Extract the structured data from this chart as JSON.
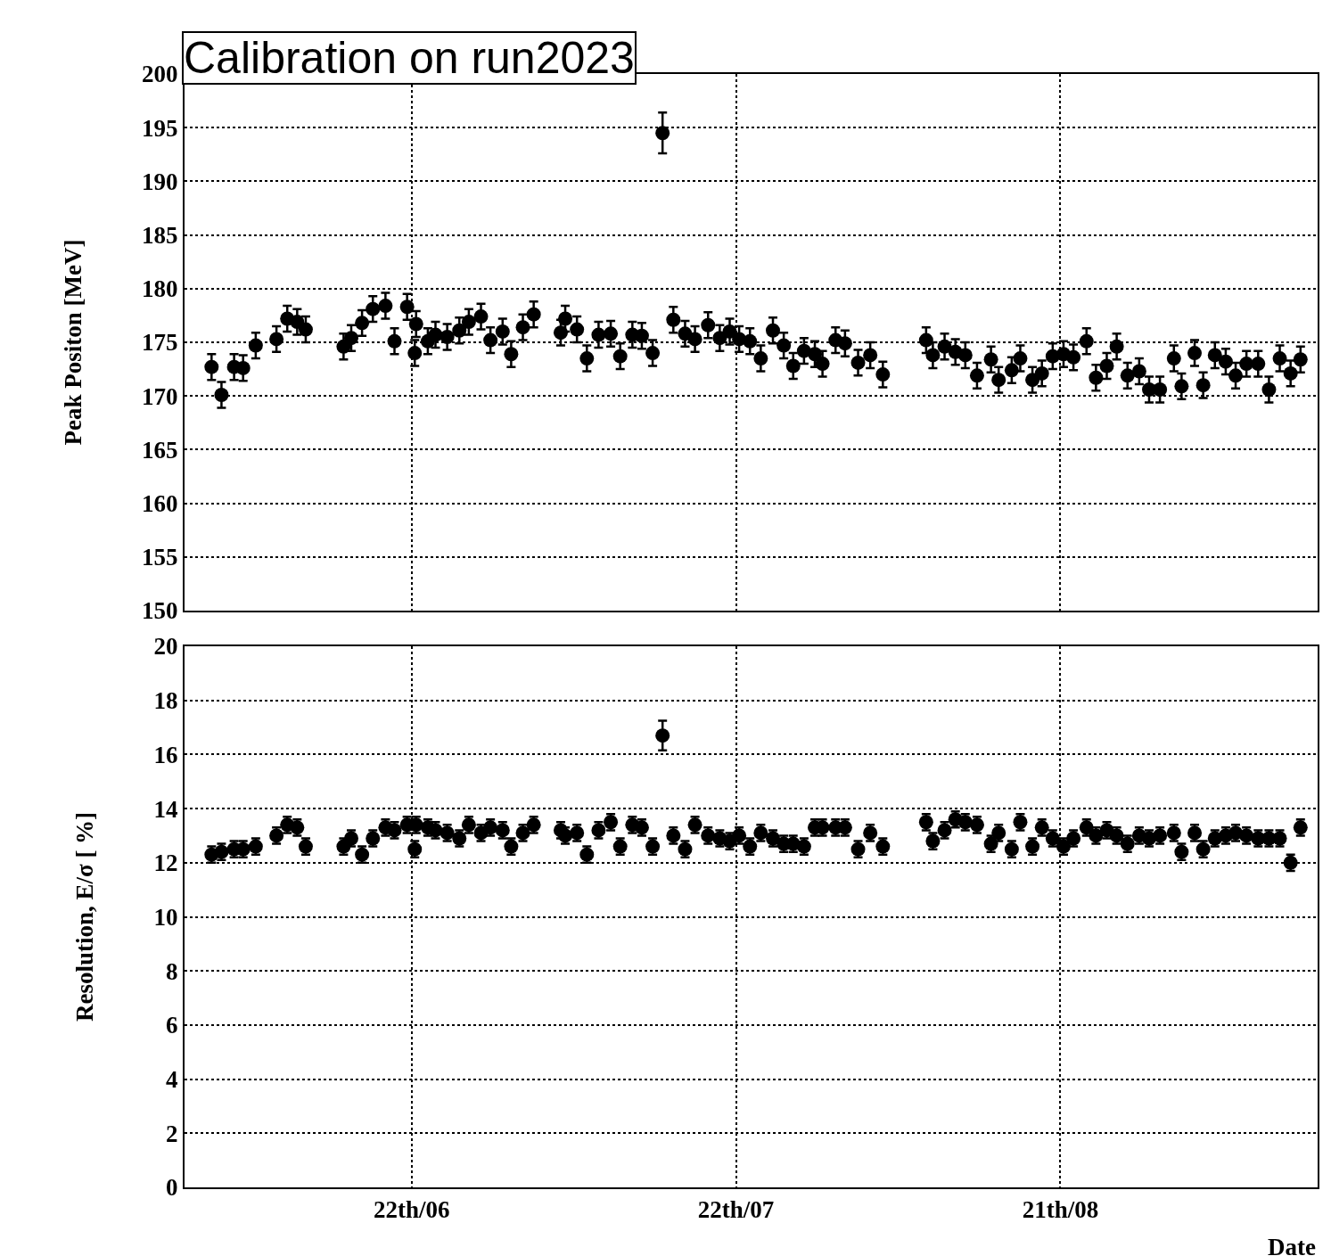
{
  "chart_data": [
    {
      "type": "scatter",
      "title": "Calibration on run2023",
      "ylabel": "Peak Positon [MeV]",
      "tick_labels": "y",
      "grid": true,
      "marker": "circle",
      "x": [
        "--06-03T12:00",
        "--06-04T10:00",
        "--06-05T14:00",
        "--06-06T10:00",
        "--06-07T14:00",
        "--06-09T12:00",
        "--06-10T12:00",
        "--06-11T10:00",
        "--06-12T05:00",
        "--06-15T17:00",
        "--06-16T10:00",
        "--06-17T10:00",
        "--06-18T10:00",
        "--06-19T14:00",
        "--06-20T10:00",
        "--06-21T14:00",
        "--06-22T10:00",
        "--06-22T07:00",
        "--06-23T12:00",
        "--06-24T05:00",
        "--06-25T07:00",
        "--06-26T10:00",
        "--06-27T07:00",
        "--06-28T10:00",
        "--06-29T07:00",
        "--06-30T10:00",
        "--07-01T05:00",
        "--07-02T07:00",
        "--07-03T07:00",
        "--07-05T19:00",
        "--07-06T05:00",
        "--07-07T07:00",
        "--07-08T05:00",
        "--07-09T07:00",
        "--07-10T10:00",
        "--07-11T07:00",
        "--07-12T10:00",
        "--07-13T07:00",
        "--07-14T07:00",
        "--07-15T05:00",
        "--07-16T05:00",
        "--07-17T07:00",
        "--07-18T05:00",
        "--07-19T10:00",
        "--07-20T12:00",
        "--07-21T10:00",
        "--07-22T07:00",
        "--07-23T07:00",
        "--07-24T07:00",
        "--07-25T10:00",
        "--07-26T10:00",
        "--07-27T07:00",
        "--07-28T07:00",
        "--07-29T07:00",
        "--07-30T00:00",
        "--07-31T05:00",
        "--08-01T02:00",
        "--08-02T07:00",
        "--08-03T10:00",
        "--08-04T14:00",
        "--08-08T14:00",
        "--08-09T05:00",
        "--08-10T07:00",
        "--08-11T07:00",
        "--08-12T05:00",
        "--08-13T07:00",
        "--08-14T14:00",
        "--08-15T07:00",
        "--08-16T12:00",
        "--08-17T07:00",
        "--08-18T10:00",
        "--08-19T07:00",
        "--08-20T07:00",
        "--08-21T07:00",
        "--08-22T05:00",
        "--08-23T10:00",
        "--08-24T07:00",
        "--08-25T07:00",
        "--08-26T05:00",
        "--08-27T05:00",
        "--08-28T07:00",
        "--08-29T05:00",
        "--08-30T05:00",
        "--08-31T12:00",
        "--09-01T05:00",
        "--09-02T10:00",
        "--09-03T05:00",
        "--09-04T07:00",
        "--09-05T07:00",
        "--09-06T05:00",
        "--09-07T05:00",
        "--09-08T07:00",
        "--09-09T07:00",
        "--09-10T07:00",
        "--09-11T07:00",
        "--09-12T05:00"
      ],
      "xlim": [
        "--06-01T00:00",
        "--09-13T19:00"
      ],
      "xticks": [
        {
          "value": "--06-22",
          "label": "22th/06"
        },
        {
          "value": "--07-22",
          "label": "22th/07"
        },
        {
          "value": "--08-21",
          "label": "21th/08"
        }
      ],
      "ylim": [
        150,
        200
      ],
      "yticks": [
        150,
        155,
        160,
        165,
        170,
        175,
        180,
        185,
        190,
        195,
        200
      ],
      "series": [
        {
          "color": "#000000",
          "values": [
            172.7,
            170.1,
            172.7,
            172.6,
            174.7,
            175.3,
            177.2,
            176.9,
            176.2,
            174.6,
            175.4,
            176.8,
            178.1,
            178.4,
            175.1,
            178.3,
            176.7,
            174.0,
            175.1,
            175.7,
            175.5,
            176.1,
            176.9,
            177.4,
            175.2,
            176.0,
            173.9,
            176.4,
            177.6,
            175.9,
            177.2,
            176.2,
            173.5,
            175.7,
            175.8,
            173.7,
            175.7,
            175.6,
            174.0,
            194.5,
            177.1,
            175.8,
            175.3,
            176.6,
            175.4,
            176.0,
            175.3,
            175.1,
            173.5,
            176.1,
            174.7,
            172.8,
            174.2,
            173.9,
            173.0,
            175.2,
            174.9,
            173.1,
            173.8,
            172.0,
            175.2,
            173.8,
            174.6,
            174.1,
            173.8,
            171.9,
            173.4,
            171.5,
            172.4,
            173.5,
            171.5,
            172.1,
            173.7,
            173.9,
            173.6,
            175.1,
            171.7,
            172.8,
            174.6,
            171.9,
            172.3,
            170.6,
            170.6,
            173.5,
            170.9,
            174.0,
            171.0,
            173.8,
            173.2,
            171.9,
            173.0,
            173.0,
            170.6,
            173.5,
            172.1,
            173.4
          ],
          "errors": [
            1.2,
            1.2,
            1.2,
            1.2,
            1.2,
            1.2,
            1.2,
            1.2,
            1.2,
            1.2,
            1.2,
            1.2,
            1.2,
            1.2,
            1.2,
            1.2,
            1.2,
            1.2,
            1.2,
            1.2,
            1.2,
            1.2,
            1.2,
            1.2,
            1.2,
            1.2,
            1.2,
            1.2,
            1.2,
            1.2,
            1.2,
            1.2,
            1.2,
            1.2,
            1.2,
            1.2,
            1.2,
            1.2,
            1.2,
            1.9,
            1.2,
            1.2,
            1.2,
            1.2,
            1.2,
            1.2,
            1.2,
            1.2,
            1.2,
            1.2,
            1.2,
            1.2,
            1.2,
            1.2,
            1.2,
            1.2,
            1.2,
            1.2,
            1.2,
            1.2,
            1.2,
            1.2,
            1.2,
            1.2,
            1.2,
            1.2,
            1.2,
            1.2,
            1.2,
            1.2,
            1.2,
            1.2,
            1.2,
            1.2,
            1.2,
            1.2,
            1.2,
            1.2,
            1.2,
            1.2,
            1.2,
            1.2,
            1.2,
            1.2,
            1.2,
            1.2,
            1.2,
            1.2,
            1.2,
            1.2,
            1.2,
            1.2,
            1.2,
            1.2,
            1.2,
            1.2
          ]
        }
      ]
    },
    {
      "type": "scatter",
      "xlabel": "Date",
      "ylabel": "Resolution, E/σ [ %]",
      "grid": true,
      "marker": "circle",
      "x": [
        "--06-03T12:00",
        "--06-04T10:00",
        "--06-05T14:00",
        "--06-06T10:00",
        "--06-07T14:00",
        "--06-09T12:00",
        "--06-10T12:00",
        "--06-11T10:00",
        "--06-12T05:00",
        "--06-15T17:00",
        "--06-16T10:00",
        "--06-17T10:00",
        "--06-18T10:00",
        "--06-19T14:00",
        "--06-20T10:00",
        "--06-21T14:00",
        "--06-22T10:00",
        "--06-22T07:00",
        "--06-23T12:00",
        "--06-24T05:00",
        "--06-25T07:00",
        "--06-26T10:00",
        "--06-27T07:00",
        "--06-28T10:00",
        "--06-29T07:00",
        "--06-30T10:00",
        "--07-01T05:00",
        "--07-02T07:00",
        "--07-03T07:00",
        "--07-05T19:00",
        "--07-06T05:00",
        "--07-07T07:00",
        "--07-08T05:00",
        "--07-09T07:00",
        "--07-10T10:00",
        "--07-11T07:00",
        "--07-12T10:00",
        "--07-13T07:00",
        "--07-14T07:00",
        "--07-15T05:00",
        "--07-16T05:00",
        "--07-17T07:00",
        "--07-18T05:00",
        "--07-19T10:00",
        "--07-20T12:00",
        "--07-21T10:00",
        "--07-22T07:00",
        "--07-23T07:00",
        "--07-24T07:00",
        "--07-25T10:00",
        "--07-26T10:00",
        "--07-27T07:00",
        "--07-28T07:00",
        "--07-29T07:00",
        "--07-30T00:00",
        "--07-31T05:00",
        "--08-01T02:00",
        "--08-02T07:00",
        "--08-03T10:00",
        "--08-04T14:00",
        "--08-08T14:00",
        "--08-09T05:00",
        "--08-10T07:00",
        "--08-11T07:00",
        "--08-12T05:00",
        "--08-13T07:00",
        "--08-14T14:00",
        "--08-15T07:00",
        "--08-16T12:00",
        "--08-17T07:00",
        "--08-18T10:00",
        "--08-19T07:00",
        "--08-20T07:00",
        "--08-21T07:00",
        "--08-22T05:00",
        "--08-23T10:00",
        "--08-24T07:00",
        "--08-25T07:00",
        "--08-26T05:00",
        "--08-27T05:00",
        "--08-28T07:00",
        "--08-29T05:00",
        "--08-30T05:00",
        "--08-31T12:00",
        "--09-01T05:00",
        "--09-02T10:00",
        "--09-03T05:00",
        "--09-04T07:00",
        "--09-05T07:00",
        "--09-06T05:00",
        "--09-07T05:00",
        "--09-08T07:00",
        "--09-09T07:00",
        "--09-10T07:00",
        "--09-11T07:00",
        "--09-12T05:00"
      ],
      "xlim": [
        "--06-01T00:00",
        "--09-13T19:00"
      ],
      "xticks": [
        {
          "value": "--06-22",
          "label": "22th/06"
        },
        {
          "value": "--07-22",
          "label": "22th/07"
        },
        {
          "value": "--08-21",
          "label": "21th/08"
        }
      ],
      "ylim": [
        0,
        20
      ],
      "yticks": [
        0,
        2,
        4,
        6,
        8,
        10,
        12,
        14,
        16,
        18,
        20
      ],
      "series": [
        {
          "color": "#000000",
          "values": [
            12.3,
            12.4,
            12.5,
            12.5,
            12.6,
            13.0,
            13.4,
            13.3,
            12.6,
            12.6,
            12.9,
            12.3,
            12.9,
            13.3,
            13.2,
            13.4,
            13.4,
            12.5,
            13.3,
            13.2,
            13.1,
            12.9,
            13.4,
            13.1,
            13.3,
            13.2,
            12.6,
            13.1,
            13.4,
            13.2,
            13.0,
            13.1,
            12.3,
            13.2,
            13.5,
            12.6,
            13.4,
            13.3,
            12.6,
            16.7,
            13.0,
            12.5,
            13.4,
            13.0,
            12.9,
            12.8,
            13.0,
            12.6,
            13.1,
            12.9,
            12.7,
            12.7,
            12.6,
            13.3,
            13.3,
            13.3,
            13.3,
            12.5,
            13.1,
            12.6,
            13.5,
            12.8,
            13.2,
            13.6,
            13.5,
            13.4,
            12.7,
            13.1,
            12.5,
            13.5,
            12.6,
            13.3,
            12.9,
            12.6,
            12.9,
            13.3,
            13.0,
            13.2,
            13.0,
            12.7,
            13.0,
            12.9,
            13.0,
            13.1,
            12.4,
            13.1,
            12.5,
            12.9,
            13.0,
            13.1,
            13.0,
            12.9,
            12.9,
            12.9,
            12.0,
            13.3
          ],
          "errors": [
            0.3,
            0.3,
            0.3,
            0.3,
            0.3,
            0.3,
            0.3,
            0.3,
            0.3,
            0.3,
            0.3,
            0.3,
            0.3,
            0.3,
            0.3,
            0.3,
            0.3,
            0.3,
            0.3,
            0.3,
            0.3,
            0.3,
            0.3,
            0.3,
            0.3,
            0.3,
            0.3,
            0.3,
            0.3,
            0.3,
            0.3,
            0.3,
            0.3,
            0.3,
            0.3,
            0.3,
            0.3,
            0.3,
            0.3,
            0.55,
            0.3,
            0.3,
            0.3,
            0.3,
            0.3,
            0.3,
            0.3,
            0.3,
            0.3,
            0.3,
            0.3,
            0.3,
            0.3,
            0.3,
            0.3,
            0.3,
            0.3,
            0.3,
            0.3,
            0.3,
            0.3,
            0.3,
            0.3,
            0.3,
            0.3,
            0.3,
            0.3,
            0.3,
            0.3,
            0.3,
            0.3,
            0.3,
            0.3,
            0.3,
            0.3,
            0.3,
            0.3,
            0.3,
            0.3,
            0.3,
            0.3,
            0.3,
            0.3,
            0.3,
            0.3,
            0.3,
            0.3,
            0.3,
            0.3,
            0.3,
            0.3,
            0.3,
            0.3,
            0.3,
            0.3,
            0.3
          ]
        }
      ]
    }
  ]
}
